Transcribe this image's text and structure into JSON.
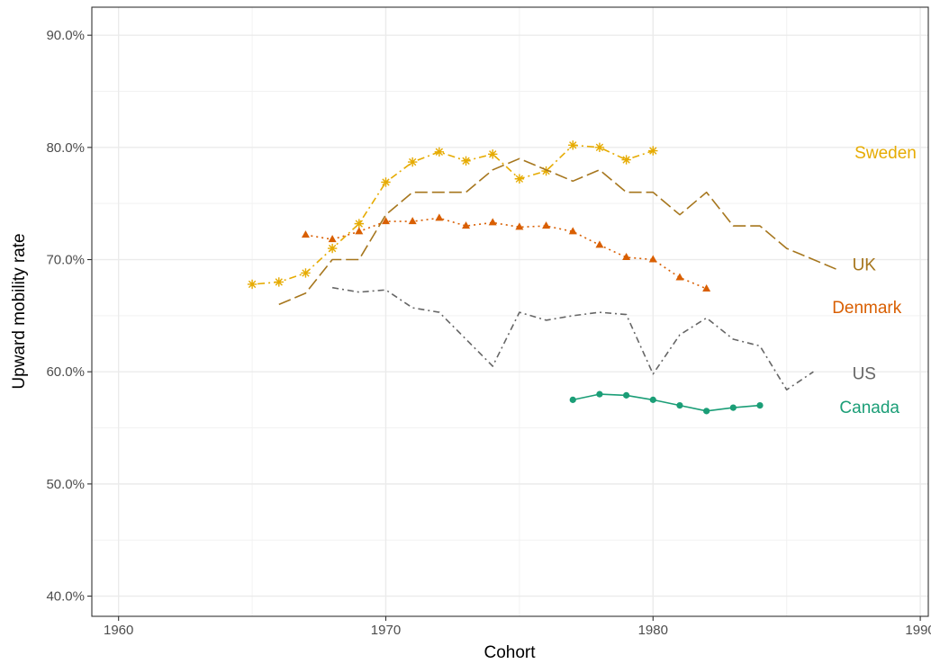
{
  "chart_data": {
    "type": "line",
    "title": "",
    "xlabel": "Cohort",
    "ylabel": "Upward mobility rate",
    "xlim": [
      1959,
      1990.3
    ],
    "ylim": [
      38.2,
      92.5
    ],
    "x_ticks": [
      1960,
      1970,
      1980,
      1990
    ],
    "x_tick_labels": [
      "1960",
      "1970",
      "1980",
      "1990"
    ],
    "y_ticks": [
      40,
      50,
      60,
      70,
      80,
      90
    ],
    "y_tick_labels": [
      "40.0%",
      "50.0%",
      "60.0%",
      "70.0%",
      "80.0%",
      "90.0%"
    ],
    "grid": true,
    "legend": "direct labels at right",
    "series": [
      {
        "name": "Sweden",
        "color": "#E6AB02",
        "dash": "dotdash",
        "marker": "asterisk",
        "label_at": [
          1988.7,
          79.6
        ],
        "x": [
          1965,
          1966,
          1967,
          1968,
          1969,
          1970,
          1971,
          1972,
          1973,
          1974,
          1975,
          1976,
          1977,
          1978,
          1979,
          1980
        ],
        "y": [
          67.8,
          68.0,
          68.8,
          71.0,
          73.2,
          76.9,
          78.7,
          79.6,
          78.8,
          79.4,
          77.2,
          77.9,
          80.2,
          80.0,
          78.9,
          79.7
        ]
      },
      {
        "name": "UK",
        "color": "#A6761D",
        "dash": "longdash",
        "marker": "none",
        "label_at": [
          1987.9,
          69.6
        ],
        "x": [
          1966,
          1967,
          1968,
          1969,
          1970,
          1971,
          1972,
          1973,
          1974,
          1975,
          1976,
          1977,
          1978,
          1979,
          1980,
          1981,
          1982,
          1983,
          1984,
          1985,
          1986,
          1987
        ],
        "y": [
          66.0,
          67.0,
          70.0,
          70.0,
          74.0,
          76.0,
          76.0,
          76.0,
          78.0,
          79.0,
          78.0,
          77.0,
          78.0,
          76.0,
          76.0,
          74.0,
          76.0,
          73.0,
          73.0,
          71.0,
          70.0,
          69.0
        ]
      },
      {
        "name": "Denmark",
        "color": "#D95F02",
        "dash": "dotted",
        "marker": "triangle",
        "label_at": [
          1988.0,
          65.8
        ],
        "x": [
          1967,
          1968,
          1969,
          1970,
          1971,
          1972,
          1973,
          1974,
          1975,
          1976,
          1977,
          1978,
          1979,
          1980,
          1981,
          1982
        ],
        "y": [
          72.2,
          71.8,
          72.5,
          73.4,
          73.4,
          73.7,
          73.0,
          73.3,
          72.9,
          73.0,
          72.5,
          71.3,
          70.2,
          70.0,
          68.4,
          67.4
        ]
      },
      {
        "name": "US",
        "color": "#666666",
        "dash": "dashdot",
        "marker": "none",
        "label_at": [
          1987.9,
          59.9
        ],
        "x": [
          1968,
          1969,
          1970,
          1971,
          1972,
          1973,
          1974,
          1975,
          1976,
          1977,
          1978,
          1979,
          1980,
          1981,
          1982,
          1983,
          1984,
          1985,
          1986
        ],
        "y": [
          67.5,
          67.1,
          67.3,
          65.7,
          65.3,
          62.9,
          60.5,
          65.3,
          64.6,
          65.0,
          65.3,
          65.1,
          59.8,
          63.3,
          64.8,
          62.9,
          62.3,
          58.4,
          60.0
        ]
      },
      {
        "name": "Canada",
        "color": "#1B9E77",
        "dash": "solid",
        "marker": "circle",
        "label_at": [
          1988.1,
          56.9
        ],
        "x": [
          1977,
          1978,
          1979,
          1980,
          1981,
          1982,
          1983,
          1984
        ],
        "y": [
          57.5,
          58.0,
          57.9,
          57.5,
          57.0,
          56.5,
          56.8,
          57.0
        ]
      }
    ]
  }
}
